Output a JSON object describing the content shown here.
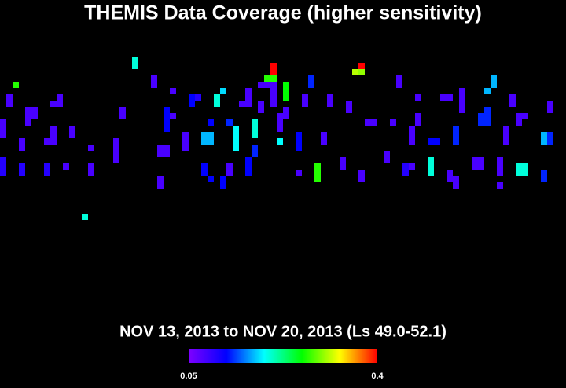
{
  "chart_data": {
    "type": "scatter",
    "title": "THEMIS Data Coverage (higher sensitivity)",
    "subtitle": "NOV 13, 2013 to NOV 20, 2013 (Ls 49.0-52.1)",
    "xlim": [
      0,
      90
    ],
    "ylim": [
      0,
      61.75
    ],
    "x": [
      21,
      21,
      2,
      1,
      1,
      0,
      0,
      0,
      0,
      0,
      0,
      4,
      4,
      4,
      5,
      5,
      3,
      3,
      3,
      3,
      8,
      8,
      7,
      8,
      9,
      9,
      8,
      7,
      7,
      10,
      11,
      11,
      13,
      14,
      14,
      14,
      18,
      18,
      18,
      18,
      19,
      19,
      24,
      24,
      27,
      25,
      25,
      26,
      26,
      25,
      25,
      26,
      26,
      26,
      26,
      27,
      29,
      29,
      29,
      30,
      30,
      31,
      32,
      32,
      33,
      33,
      33,
      34,
      34,
      35,
      32,
      32,
      33,
      36,
      36,
      35,
      35,
      37,
      37,
      37,
      37,
      36,
      38,
      39,
      39,
      39,
      40,
      40,
      40,
      39,
      39,
      39,
      40,
      40,
      41,
      41,
      41,
      42,
      43,
      42,
      43,
      43,
      43,
      43,
      43,
      43,
      44,
      44,
      44,
      44,
      45,
      45,
      45,
      45,
      45,
      47,
      47,
      47,
      47,
      49,
      49,
      48,
      48,
      50,
      50,
      50,
      51,
      51,
      52,
      52,
      54,
      54,
      55,
      55,
      57,
      57,
      56,
      57,
      57,
      58,
      59,
      61,
      61,
      62,
      63,
      63,
      64,
      64,
      65,
      65,
      65,
      65,
      66,
      66,
      66,
      68,
      69,
      68,
      68,
      68,
      70,
      71,
      71,
      71,
      72,
      72,
      72,
      72,
      72,
      73,
      73,
      73,
      73,
      75,
      75,
      76,
      76,
      76,
      76,
      77,
      77,
      77,
      77,
      78,
      78,
      79,
      79,
      79,
      79,
      80,
      80,
      80,
      81,
      81,
      82,
      82,
      82,
      82,
      83,
      83,
      83,
      86,
      86,
      87,
      87,
      87,
      87,
      86,
      86
    ],
    "y": [
      9,
      10,
      13,
      15,
      16,
      19,
      20,
      21,
      25,
      26,
      27,
      17,
      18,
      19,
      17,
      18,
      22,
      23,
      26,
      27,
      20,
      21,
      22,
      22,
      15,
      16,
      16,
      26,
      27,
      26,
      20,
      21,
      34,
      23,
      26,
      27,
      22,
      23,
      24,
      25,
      17,
      18,
      12,
      13,
      14,
      23,
      24,
      23,
      24,
      28,
      29,
      17,
      18,
      19,
      20,
      18,
      21,
      22,
      23,
      15,
      16,
      15,
      21,
      22,
      21,
      22,
      19,
      15,
      16,
      14,
      26,
      27,
      28,
      26,
      27,
      28,
      29,
      20,
      21,
      22,
      23,
      19,
      16,
      14,
      15,
      16,
      19,
      20,
      21,
      25,
      26,
      27,
      23,
      24,
      16,
      17,
      13,
      12,
      12,
      13,
      11,
      10,
      13,
      14,
      15,
      16,
      22,
      18,
      19,
      20,
      17,
      18,
      13,
      14,
      15,
      21,
      22,
      23,
      27,
      12,
      13,
      15,
      16,
      26,
      27,
      28,
      21,
      22,
      15,
      16,
      25,
      26,
      16,
      17,
      10,
      11,
      11,
      27,
      28,
      19,
      19,
      24,
      25,
      19,
      12,
      13,
      26,
      27,
      26,
      20,
      21,
      22,
      15,
      18,
      19,
      22,
      22,
      25,
      26,
      27,
      15,
      15,
      27,
      28,
      28,
      29,
      20,
      21,
      22,
      14,
      15,
      16,
      17,
      25,
      26,
      25,
      26,
      18,
      19,
      17,
      18,
      19,
      14,
      12,
      13,
      25,
      26,
      27,
      29,
      20,
      21,
      22,
      15,
      16,
      18,
      19,
      26,
      27,
      18,
      26,
      27,
      21,
      22,
      16,
      17,
      21,
      22,
      27,
      28
    ],
    "values": [
      0.2,
      0.2,
      0.27,
      0.08,
      0.08,
      0.08,
      0.08,
      0.08,
      0.1,
      0.1,
      0.1,
      0.08,
      0.08,
      0.08,
      0.08,
      0.08,
      0.08,
      0.08,
      0.1,
      0.1,
      0.08,
      0.08,
      0.08,
      0.08,
      0.08,
      0.08,
      0.08,
      0.1,
      0.1,
      0.08,
      0.08,
      0.08,
      0.2,
      0.08,
      0.08,
      0.08,
      0.08,
      0.08,
      0.08,
      0.08,
      0.08,
      0.08,
      0.08,
      0.08,
      0.08,
      0.08,
      0.08,
      0.08,
      0.08,
      0.08,
      0.08,
      0.12,
      0.12,
      0.12,
      0.12,
      0.08,
      0.08,
      0.08,
      0.08,
      0.12,
      0.12,
      0.1,
      0.17,
      0.17,
      0.17,
      0.17,
      0.12,
      0.2,
      0.2,
      0.18,
      0.12,
      0.12,
      0.12,
      0.08,
      0.08,
      0.12,
      0.12,
      0.19,
      0.19,
      0.19,
      0.19,
      0.13,
      0.08,
      0.08,
      0.08,
      0.08,
      0.2,
      0.2,
      0.2,
      0.12,
      0.12,
      0.12,
      0.13,
      0.13,
      0.08,
      0.08,
      0.08,
      0.27,
      0.27,
      0.08,
      0.4,
      0.4,
      0.08,
      0.08,
      0.08,
      0.08,
      0.19,
      0.08,
      0.08,
      0.08,
      0.08,
      0.08,
      0.26,
      0.26,
      0.26,
      0.12,
      0.12,
      0.12,
      0.08,
      0.13,
      0.13,
      0.08,
      0.08,
      0.27,
      0.27,
      0.27,
      0.08,
      0.08,
      0.08,
      0.08,
      0.08,
      0.08,
      0.08,
      0.08,
      0.4,
      0.3,
      0.31,
      0.08,
      0.08,
      0.08,
      0.08,
      0.08,
      0.08,
      0.08,
      0.08,
      0.08,
      0.1,
      0.1,
      0.08,
      0.08,
      0.08,
      0.08,
      0.08,
      0.08,
      0.08,
      0.12,
      0.12,
      0.2,
      0.2,
      0.2,
      0.08,
      0.08,
      0.08,
      0.08,
      0.08,
      0.08,
      0.13,
      0.13,
      0.13,
      0.08,
      0.08,
      0.08,
      0.08,
      0.08,
      0.08,
      0.08,
      0.08,
      0.13,
      0.13,
      0.13,
      0.13,
      0.13,
      0.17,
      0.17,
      0.17,
      0.08,
      0.08,
      0.08,
      0.08,
      0.08,
      0.08,
      0.08,
      0.08,
      0.08,
      0.08,
      0.08,
      0.2,
      0.2,
      0.08,
      0.2,
      0.2,
      0.17,
      0.17,
      0.08,
      0.08,
      0.13,
      0.13,
      0.13,
      0.13
    ],
    "colormap": [
      "#7f00ff",
      "#0000ff",
      "#00ffff",
      "#00ff00",
      "#ffff00",
      "#ff0000"
    ],
    "colorbar": {
      "range": [
        0.05,
        0.4
      ],
      "ticks": [
        0.05,
        0.4
      ]
    }
  }
}
